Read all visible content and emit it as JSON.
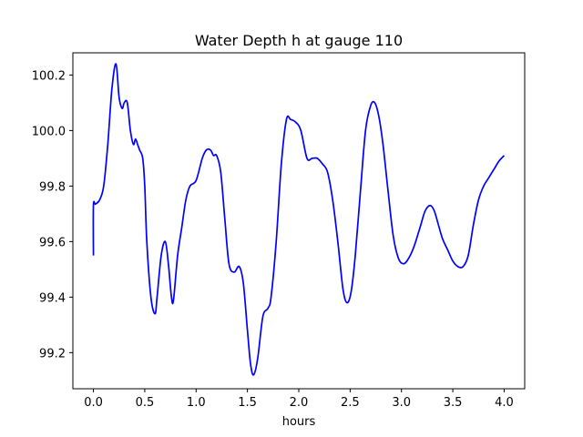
{
  "chart_data": {
    "type": "line",
    "title": "Water Depth h at gauge 110",
    "xlabel": "hours",
    "ylabel": "",
    "xlim": [
      -0.2,
      4.2
    ],
    "ylim": [
      99.07,
      100.28
    ],
    "grid": false,
    "legend": "none",
    "x_ticks": [
      0.0,
      0.5,
      1.0,
      1.5,
      2.0,
      2.5,
      3.0,
      3.5,
      4.0
    ],
    "x_tick_labels": [
      "0.0",
      "0.5",
      "1.0",
      "1.5",
      "2.0",
      "2.5",
      "3.0",
      "3.5",
      "4.0"
    ],
    "y_ticks": [
      99.2,
      99.4,
      99.6,
      99.8,
      100.0,
      100.2
    ],
    "y_tick_labels": [
      "99.2",
      "99.4",
      "99.6",
      "99.8",
      "100.0",
      "100.2"
    ],
    "series": [
      {
        "color": "#0000ff",
        "x": [
          0.0,
          0.0,
          0.02,
          0.06,
          0.1,
          0.14,
          0.18,
          0.22,
          0.25,
          0.28,
          0.3,
          0.33,
          0.36,
          0.39,
          0.41,
          0.43,
          0.45,
          0.48,
          0.5,
          0.52,
          0.56,
          0.6,
          0.62,
          0.66,
          0.7,
          0.73,
          0.76,
          0.78,
          0.82,
          0.86,
          0.9,
          0.94,
          1.0,
          1.06,
          1.1,
          1.14,
          1.17,
          1.2,
          1.24,
          1.28,
          1.32,
          1.37,
          1.42,
          1.46,
          1.5,
          1.53,
          1.56,
          1.6,
          1.65,
          1.7,
          1.73,
          1.78,
          1.83,
          1.88,
          1.92,
          1.97,
          2.02,
          2.08,
          2.13,
          2.18,
          2.23,
          2.28,
          2.33,
          2.38,
          2.43,
          2.47,
          2.51,
          2.55,
          2.6,
          2.65,
          2.7,
          2.74,
          2.78,
          2.82,
          2.87,
          2.92,
          2.97,
          3.02,
          3.07,
          3.12,
          3.18,
          3.23,
          3.28,
          3.32,
          3.36,
          3.4,
          3.45,
          3.5,
          3.55,
          3.6,
          3.65,
          3.7,
          3.75,
          3.8,
          3.85,
          3.9,
          3.95,
          4.0
        ],
        "y": [
          99.55,
          99.73,
          99.735,
          99.75,
          99.8,
          99.95,
          100.15,
          100.24,
          100.12,
          100.08,
          100.1,
          100.1,
          100.0,
          99.95,
          99.97,
          99.95,
          99.93,
          99.9,
          99.8,
          99.6,
          99.4,
          99.34,
          99.4,
          99.55,
          99.6,
          99.52,
          99.4,
          99.39,
          99.55,
          99.65,
          99.75,
          99.8,
          99.82,
          99.9,
          99.93,
          99.93,
          99.91,
          99.91,
          99.85,
          99.68,
          99.52,
          99.49,
          99.51,
          99.45,
          99.28,
          99.16,
          99.12,
          99.18,
          99.33,
          99.36,
          99.4,
          99.6,
          99.88,
          100.04,
          100.04,
          100.03,
          100.0,
          99.9,
          99.9,
          99.9,
          99.88,
          99.85,
          99.75,
          99.6,
          99.43,
          99.38,
          99.42,
          99.55,
          99.78,
          100.0,
          100.09,
          100.1,
          100.05,
          99.95,
          99.78,
          99.62,
          99.54,
          99.52,
          99.54,
          99.58,
          99.65,
          99.71,
          99.73,
          99.71,
          99.66,
          99.61,
          99.57,
          99.53,
          99.51,
          99.51,
          99.55,
          99.66,
          99.75,
          99.8,
          99.83,
          99.86,
          99.89,
          99.91
        ]
      }
    ]
  }
}
